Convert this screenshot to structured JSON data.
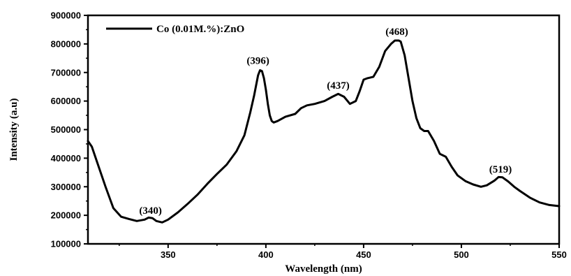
{
  "chart_data": {
    "type": "line",
    "xlabel": "Wavelength (nm)",
    "ylabel": "Intensity (a.u)",
    "xlim": [
      309,
      550
    ],
    "ylim": [
      100000,
      900000
    ],
    "x_ticks": [
      350,
      400,
      450,
      500,
      550
    ],
    "x_tick_labels": [
      "350",
      "400",
      "450",
      "500",
      "550"
    ],
    "y_ticks": [
      100000,
      200000,
      300000,
      400000,
      500000,
      600000,
      700000,
      800000,
      900000
    ],
    "y_tick_labels": [
      "100000",
      "200000",
      "300000",
      "400000",
      "500000",
      "600000",
      "700000",
      "800000",
      "900000"
    ],
    "legend": {
      "position": "top-left"
    },
    "grid": false,
    "series": [
      {
        "name": "Co (0.01M.%):ZnO",
        "color": "#000000",
        "x": [
          309,
          311,
          314,
          318,
          322,
          326,
          330,
          334,
          338,
          340,
          342,
          344,
          347,
          350,
          355,
          360,
          365,
          370,
          375,
          380,
          385,
          389,
          392,
          394,
          396,
          397,
          398,
          399,
          400,
          401,
          402,
          403,
          404,
          406,
          410,
          415,
          418,
          421,
          425,
          430,
          434,
          437,
          440,
          443,
          446,
          448,
          450,
          452,
          455,
          458,
          461,
          464,
          466,
          468,
          469,
          471,
          473,
          475,
          477,
          479,
          481,
          483,
          486,
          489,
          492,
          495,
          498,
          502,
          506,
          510,
          513,
          517,
          519,
          521,
          524,
          527,
          530,
          535,
          540,
          545,
          550
        ],
        "y": [
          460000,
          440000,
          380000,
          300000,
          225000,
          195000,
          187000,
          180000,
          185000,
          192000,
          190000,
          180000,
          175000,
          185000,
          210000,
          240000,
          272000,
          310000,
          345000,
          378000,
          425000,
          480000,
          560000,
          620000,
          690000,
          708000,
          705000,
          680000,
          640000,
          590000,
          550000,
          530000,
          525000,
          530000,
          545000,
          555000,
          575000,
          585000,
          590000,
          600000,
          615000,
          625000,
          615000,
          590000,
          600000,
          635000,
          675000,
          680000,
          685000,
          720000,
          775000,
          800000,
          812000,
          812000,
          808000,
          760000,
          680000,
          600000,
          540000,
          505000,
          495000,
          495000,
          460000,
          415000,
          405000,
          370000,
          340000,
          320000,
          308000,
          300000,
          305000,
          322000,
          334000,
          333000,
          318000,
          300000,
          285000,
          262000,
          245000,
          236000,
          232000
        ]
      }
    ],
    "annotations": [
      {
        "text": "(340)",
        "x": 341,
        "y": 205000
      },
      {
        "text": "(396)",
        "x": 396,
        "y": 730000
      },
      {
        "text": "(437)",
        "x": 437,
        "y": 643000
      },
      {
        "text": "(468)",
        "x": 467,
        "y": 832000
      },
      {
        "text": "(519)",
        "x": 520,
        "y": 350000
      }
    ]
  }
}
